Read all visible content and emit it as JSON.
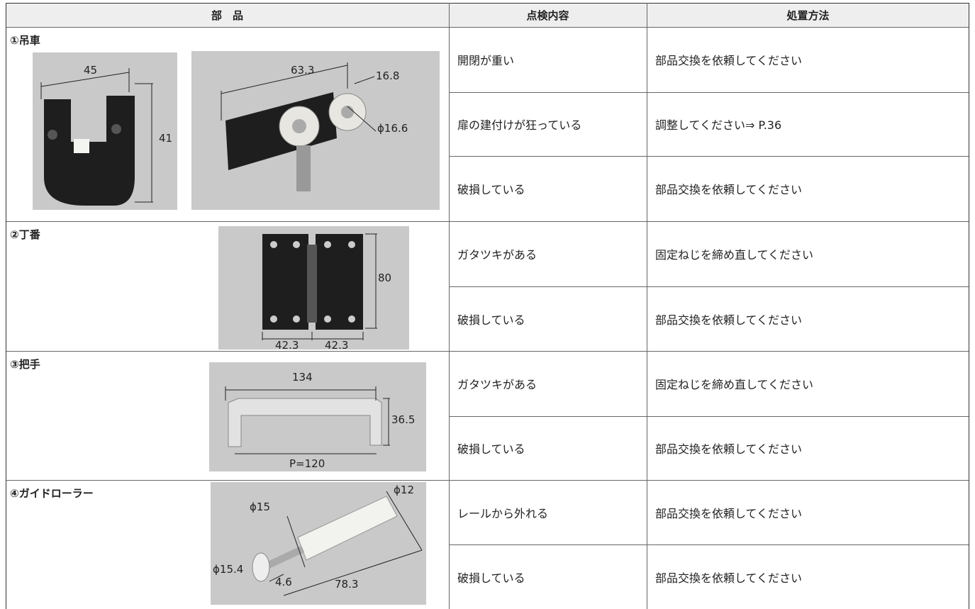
{
  "table": {
    "header": [
      "部　品",
      "点検内容",
      "処置方法"
    ],
    "parts": [
      {
        "name": "①吊車",
        "dimensions": [
          "45",
          "41",
          "63.3",
          "16.8",
          "ϕ16.6"
        ],
        "checks": [
          [
            "開閉が重い",
            "部品交換を依頼してください"
          ],
          [
            "扉の建付けが狂っている",
            "調整してください⇒ P.36"
          ],
          [
            "破損している",
            "部品交換を依頼してください"
          ]
        ]
      },
      {
        "name": "②丁番",
        "dimensions": [
          "80",
          "42.3",
          "42.3"
        ],
        "checks": [
          [
            "ガタツキがある",
            "固定ねじを締め直してください"
          ],
          [
            "破損している",
            "部品交換を依頼してください"
          ]
        ]
      },
      {
        "name": "③把手",
        "dimensions": [
          "134",
          "36.5",
          "P=120"
        ],
        "checks": [
          [
            "ガタツキがある",
            "固定ねじを締め直してください"
          ],
          [
            "破損している",
            "部品交換を依頼してください"
          ]
        ]
      },
      {
        "name": "④ガイドローラー",
        "dimensions": [
          "ϕ12",
          "ϕ15",
          "ϕ15.4",
          "4.6",
          "78.3"
        ],
        "checks": [
          [
            "レールから外れる",
            "部品交換を依頼してください"
          ],
          [
            "破損している",
            "部品交換を依頼してください"
          ]
        ]
      }
    ]
  }
}
